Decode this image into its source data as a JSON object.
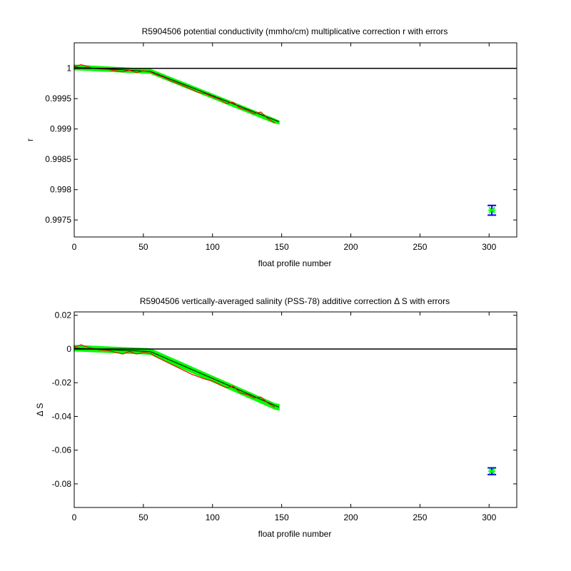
{
  "chart_data": [
    {
      "type": "line",
      "title": "R5904506 potential conductivity (mmho/cm) multiplicative correction r with errors",
      "xlabel": "float profile number",
      "ylabel": "r",
      "xlim": [
        0,
        320
      ],
      "ylim": [
        0.99722,
        1.00042
      ],
      "xticks": [
        0,
        50,
        100,
        150,
        200,
        250,
        300
      ],
      "yticks": [
        0.9975,
        0.998,
        0.9985,
        0.999,
        0.9995,
        1
      ],
      "ytick_labels": [
        "0.9975",
        "0.998",
        "0.9985",
        "0.999",
        "0.9995",
        "1"
      ],
      "reference_line": 1,
      "colors": {
        "band": "#00ff00",
        "estimate": "#ff0000",
        "fit": "#000000",
        "errorbar": "#0000ff",
        "marker": "#00ff00"
      },
      "band": {
        "x": [
          0,
          55,
          145,
          148
        ],
        "lower": [
          0.99998,
          0.99992,
          0.9991,
          0.99909
        ],
        "upper": [
          1.00005,
          0.99998,
          0.99916,
          0.99913
        ]
      },
      "fit": {
        "x": [
          0,
          55,
          148
        ],
        "y": [
          1.00002,
          0.99995,
          0.99912
        ]
      },
      "estimate": {
        "x": [
          0,
          5,
          8,
          12,
          18,
          25,
          30,
          35,
          40,
          45,
          50,
          55,
          60,
          65,
          70,
          75,
          80,
          85,
          90,
          95,
          100,
          105,
          110,
          115,
          120,
          125,
          130,
          135,
          140,
          145
        ],
        "y": [
          1.00003,
          1.00006,
          1.00004,
          1.00001,
          0.99999,
          0.99998,
          0.99996,
          0.99994,
          0.99997,
          0.99993,
          0.99996,
          0.99994,
          0.99989,
          0.99985,
          0.99979,
          0.99975,
          0.9997,
          0.99965,
          0.9996,
          0.99958,
          0.99953,
          0.99949,
          0.99942,
          0.99944,
          0.99934,
          0.99931,
          0.99925,
          0.99928,
          0.99917,
          0.9991
        ]
      },
      "error_point": {
        "x": 302,
        "y": 0.99766,
        "err": 8e-05
      }
    },
    {
      "type": "line",
      "title": "R5904506 vertically-averaged salinity (PSS-78) additive correction Δ S with errors",
      "xlabel": "float profile number",
      "ylabel": "Δ S",
      "xlim": [
        0,
        320
      ],
      "ylim": [
        -0.094,
        0.022
      ],
      "xticks": [
        0,
        50,
        100,
        150,
        200,
        250,
        300
      ],
      "yticks": [
        -0.08,
        -0.06,
        -0.04,
        -0.02,
        0,
        0.02
      ],
      "ytick_labels": [
        "-0.08",
        "-0.06",
        "-0.04",
        "-0.02",
        "0",
        "0.02"
      ],
      "reference_line": 0,
      "colors": {
        "band": "#00ff00",
        "estimate": "#ff0000",
        "fit": "#000000",
        "errorbar": "#0000ff",
        "marker": "#00ff00"
      },
      "band": {
        "x": [
          0,
          55,
          145,
          148
        ],
        "lower": [
          -0.001,
          -0.003,
          -0.0355,
          -0.036
        ],
        "upper": [
          0.002,
          0.0,
          -0.0325,
          -0.033
        ]
      },
      "fit": {
        "x": [
          0,
          55,
          148
        ],
        "y": [
          0.0005,
          -0.0015,
          -0.0345
        ]
      },
      "estimate": {
        "x": [
          0,
          5,
          8,
          12,
          18,
          25,
          30,
          35,
          40,
          45,
          50,
          55,
          60,
          65,
          70,
          75,
          80,
          85,
          90,
          95,
          100,
          105,
          110,
          115,
          120,
          125,
          130,
          135,
          140,
          145
        ],
        "y": [
          0.001,
          0.0025,
          0.0015,
          0.0005,
          -0.0005,
          -0.001,
          -0.002,
          -0.003,
          -0.0015,
          -0.003,
          -0.002,
          -0.0025,
          -0.005,
          -0.007,
          -0.009,
          -0.011,
          -0.013,
          -0.015,
          -0.0165,
          -0.018,
          -0.019,
          -0.021,
          -0.023,
          -0.022,
          -0.026,
          -0.027,
          -0.029,
          -0.0285,
          -0.032,
          -0.0345
        ]
      },
      "error_point": {
        "x": 302,
        "y": -0.0725,
        "err": 0.002
      }
    }
  ]
}
